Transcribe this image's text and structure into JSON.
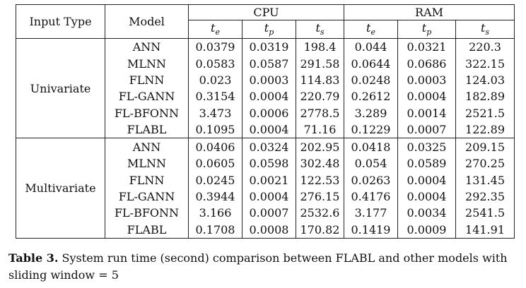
{
  "headers": {
    "input_type": "Input Type",
    "model": "Model",
    "cpu": "CPU",
    "ram": "RAM",
    "sub_headers": [
      {
        "base": "t",
        "sub": "e"
      },
      {
        "base": "t",
        "sub": "p"
      },
      {
        "base": "t",
        "sub": "s"
      },
      {
        "base": "t",
        "sub": "e"
      },
      {
        "base": "t",
        "sub": "p"
      },
      {
        "base": "t",
        "sub": "s"
      }
    ]
  },
  "groups": [
    {
      "input_type": "Univariate",
      "rows": [
        {
          "model": "ANN",
          "values": [
            "0.0379",
            "0.0319",
            "198.4",
            "0.044",
            "0.0321",
            "220.3"
          ]
        },
        {
          "model": "MLNN",
          "values": [
            "0.0583",
            "0.0587",
            "291.58",
            "0.0644",
            "0.0686",
            "322.15"
          ]
        },
        {
          "model": "FLNN",
          "values": [
            "0.023",
            "0.0003",
            "114.83",
            "0.0248",
            "0.0003",
            "124.03"
          ]
        },
        {
          "model": "FL-GANN",
          "values": [
            "0.3154",
            "0.0004",
            "220.79",
            "0.2612",
            "0.0004",
            "182.89"
          ]
        },
        {
          "model": "FL-BFONN",
          "values": [
            "3.473",
            "0.0006",
            "2778.5",
            "3.289",
            "0.0014",
            "2521.5"
          ]
        },
        {
          "model": "FLABL",
          "values": [
            "0.1095",
            "0.0004",
            "71.16",
            "0.1229",
            "0.0007",
            "122.89"
          ],
          "bold": [
            2,
            5
          ]
        }
      ]
    },
    {
      "input_type": "Multivariate",
      "rows": [
        {
          "model": "ANN",
          "values": [
            "0.0406",
            "0.0324",
            "202.95",
            "0.0418",
            "0.0325",
            "209.15"
          ]
        },
        {
          "model": "MLNN",
          "values": [
            "0.0605",
            "0.0598",
            "302.48",
            "0.054",
            "0.0589",
            "270.25"
          ]
        },
        {
          "model": "FLNN",
          "values": [
            "0.0245",
            "0.0021",
            "122.53",
            "0.0263",
            "0.0004",
            "131.45"
          ]
        },
        {
          "model": "FL-GANN",
          "values": [
            "0.3944",
            "0.0004",
            "276.15",
            "0.4176",
            "0.0004",
            "292.35"
          ]
        },
        {
          "model": "FL-BFONN",
          "values": [
            "3.166",
            "0.0007",
            "2532.6",
            "3.177",
            "0.0034",
            "2541.5"
          ]
        },
        {
          "model": "FLABL",
          "values": [
            "0.1708",
            "0.0008",
            "170.82",
            "0.1419",
            "0.0009",
            "141.91"
          ]
        }
      ]
    }
  ],
  "caption": {
    "label": "Table 3.",
    "text": " System run time (second) comparison between FLABL and other models with sliding window = 5"
  }
}
